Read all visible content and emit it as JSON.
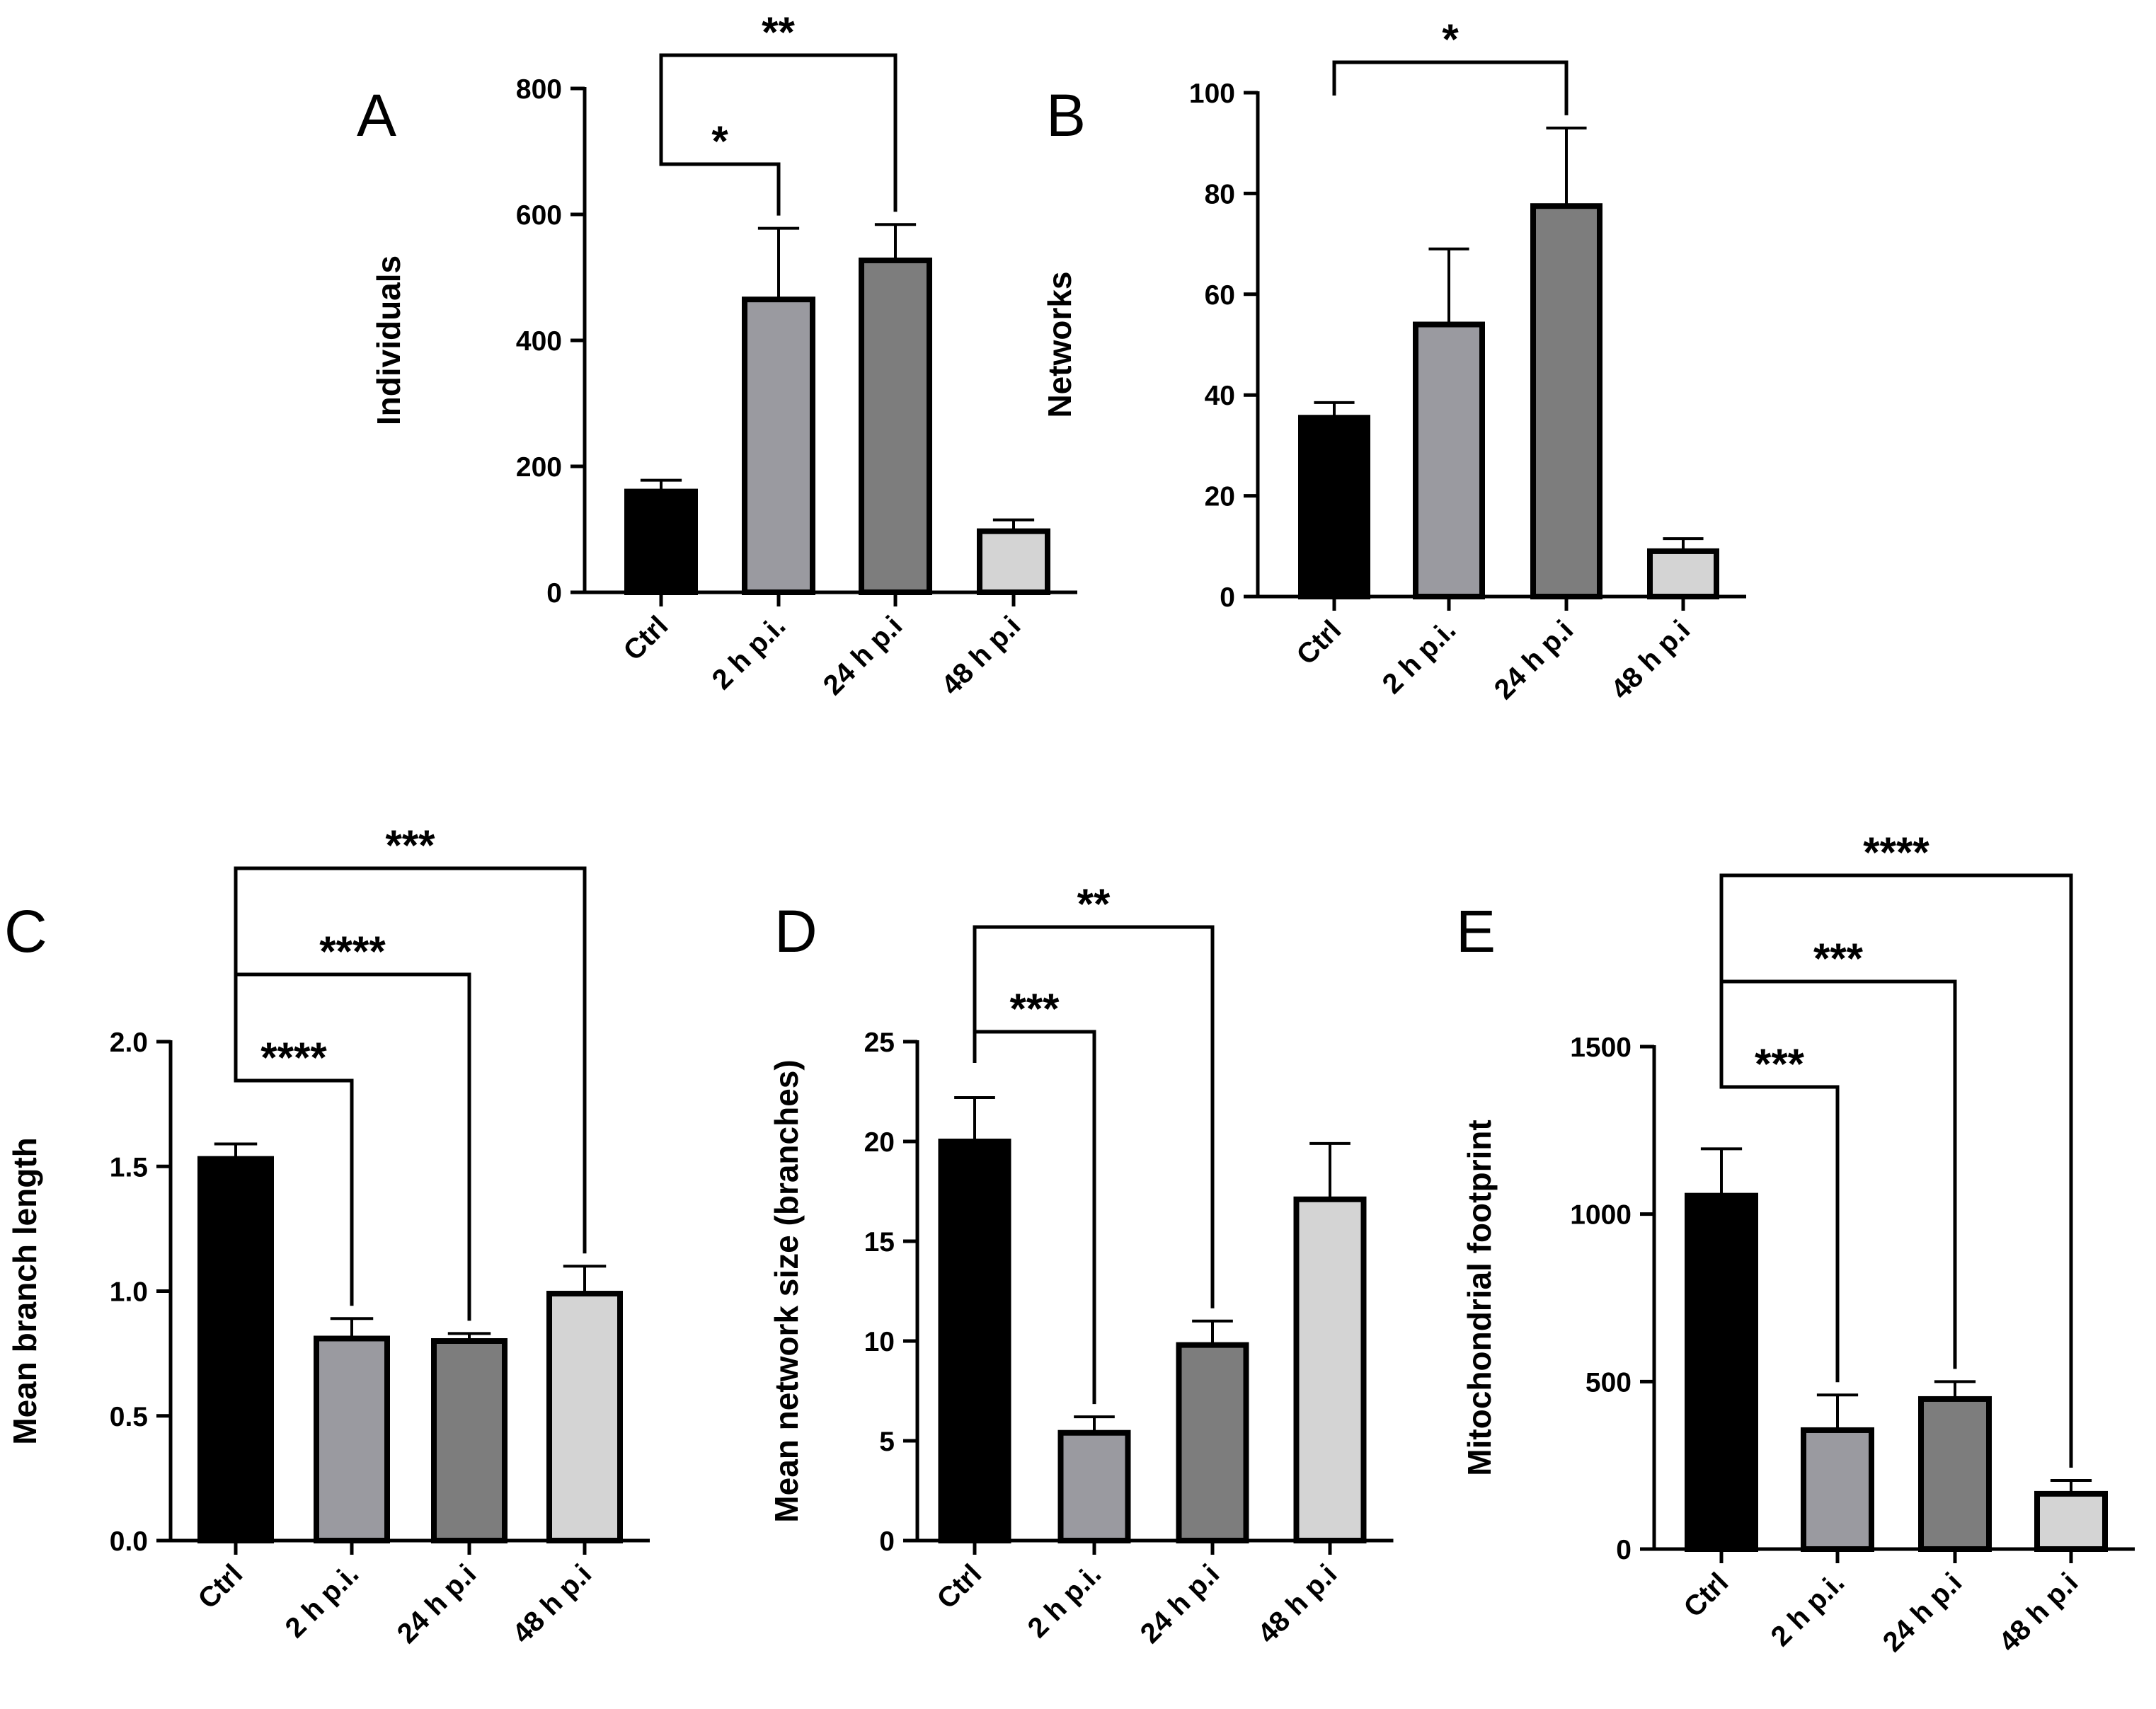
{
  "colors": {
    "bars": [
      "#000000",
      "#9a9aa0",
      "#7d7d7d",
      "#d4d4d4"
    ],
    "outline": "#000000"
  },
  "chart_data": [
    {
      "panel": "A",
      "type": "bar",
      "ylabel": "Individuals",
      "categories": [
        "Ctrl",
        "2 h p.i.",
        "24 h p.i",
        "48 h p.i"
      ],
      "values": [
        160,
        465,
        527,
        97
      ],
      "errors": [
        18,
        113,
        57,
        18
      ],
      "ylim": [
        0,
        800
      ],
      "yticks": [
        0,
        200,
        400,
        600,
        800
      ],
      "significance": [
        {
          "from": 0,
          "to": 1,
          "label": "*"
        },
        {
          "from": 0,
          "to": 2,
          "label": "**"
        }
      ]
    },
    {
      "panel": "B",
      "type": "bar",
      "ylabel": "Networks",
      "categories": [
        "Ctrl",
        "2 h p.i.",
        "24 h p.i",
        "48 h p.i"
      ],
      "values": [
        35.5,
        54,
        77.5,
        9
      ],
      "errors": [
        3,
        15,
        15.5,
        2.5
      ],
      "ylim": [
        0,
        100
      ],
      "yticks": [
        0,
        20,
        40,
        60,
        80,
        100
      ],
      "significance": [
        {
          "from": 0,
          "to": 2,
          "label": "*"
        }
      ]
    },
    {
      "panel": "C",
      "type": "bar",
      "ylabel": "Mean branch length",
      "categories": [
        "Ctrl",
        "2 h p.i.",
        "24 h p.i",
        "48 h p.i"
      ],
      "values": [
        1.53,
        0.81,
        0.8,
        0.99
      ],
      "errors": [
        0.06,
        0.08,
        0.03,
        0.11
      ],
      "ylim": [
        0,
        2.0
      ],
      "yticks": [
        "0.0",
        "0.5",
        "1.0",
        "1.5",
        "2.0"
      ],
      "significance": [
        {
          "from": 0,
          "to": 1,
          "label": "****"
        },
        {
          "from": 0,
          "to": 2,
          "label": "****"
        },
        {
          "from": 0,
          "to": 3,
          "label": "***"
        }
      ]
    },
    {
      "panel": "D",
      "type": "bar",
      "ylabel": "Mean network size (branches)",
      "categories": [
        "Ctrl",
        "2 h p.i.",
        "24 h p.i",
        "48 h p.i"
      ],
      "values": [
        20,
        5.4,
        9.8,
        17.1
      ],
      "errors": [
        2.2,
        0.8,
        1.2,
        2.8
      ],
      "ylim": [
        0,
        25
      ],
      "yticks": [
        0,
        5,
        10,
        15,
        20,
        25
      ],
      "significance": [
        {
          "from": 0,
          "to": 1,
          "label": "***"
        },
        {
          "from": 0,
          "to": 2,
          "label": "**"
        }
      ]
    },
    {
      "panel": "E",
      "type": "bar",
      "ylabel": "Mitochondrial footprint",
      "categories": [
        "Ctrl",
        "2 h p.i.",
        "24 h p.i",
        "48 h p.i"
      ],
      "values": [
        1055,
        355,
        448,
        165
      ],
      "errors": [
        140,
        105,
        52,
        40
      ],
      "ylim": [
        0,
        1500
      ],
      "yticks": [
        0,
        500,
        1000,
        1500
      ],
      "significance": [
        {
          "from": 0,
          "to": 1,
          "label": "***"
        },
        {
          "from": 0,
          "to": 2,
          "label": "***"
        },
        {
          "from": 0,
          "to": 3,
          "label": "****"
        }
      ]
    }
  ]
}
